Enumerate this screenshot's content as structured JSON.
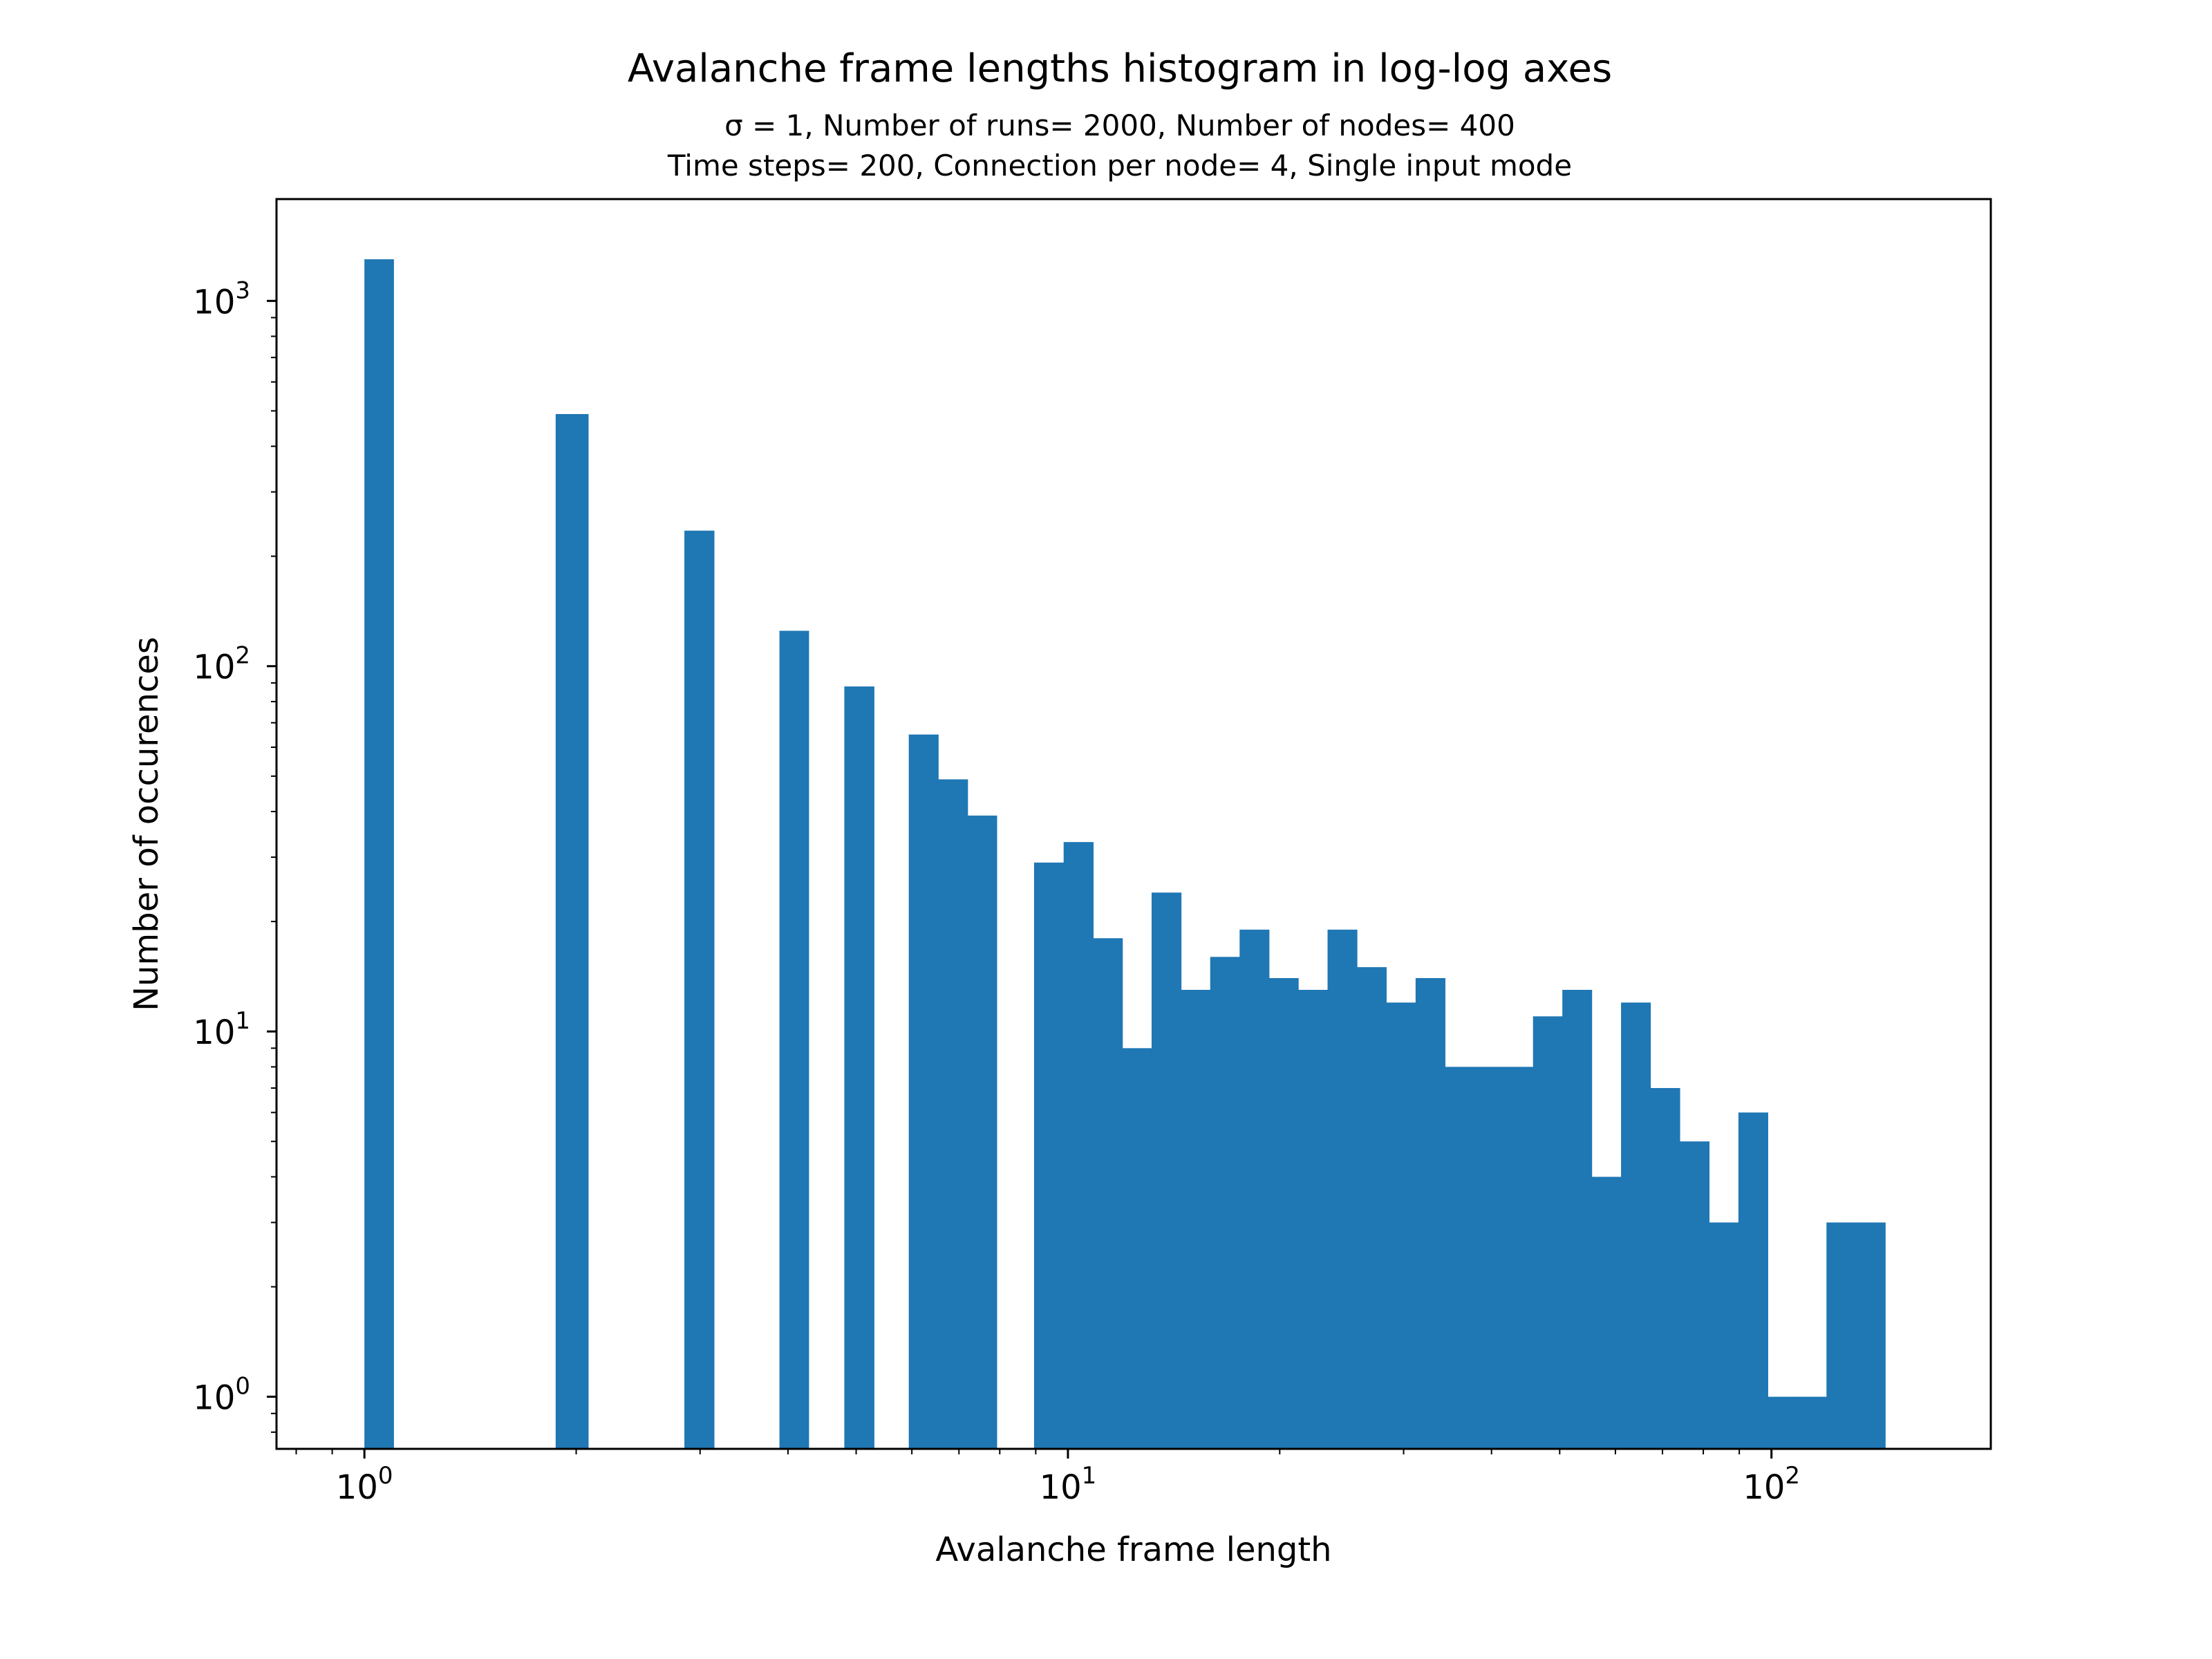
{
  "chart_data": {
    "type": "bar",
    "title": "Avalanche frame lengths histogram in log-log axes",
    "subtitle_lines": [
      "σ = 1, Number of runs= 2000, Number of nodes= 400",
      "Time steps= 200, Connection per node= 4, Single input mode"
    ],
    "xlabel": "Avalanche frame length",
    "ylabel": "Number of occurences",
    "x_scale": "log",
    "y_scale": "log",
    "xlim": [
      0.75,
      205
    ],
    "ylim": [
      0.72,
      1900
    ],
    "x_ticks": [
      {
        "base": "10",
        "exp": "0",
        "value": 1
      },
      {
        "base": "10",
        "exp": "1",
        "value": 10
      },
      {
        "base": "10",
        "exp": "2",
        "value": 100
      }
    ],
    "y_ticks": [
      {
        "base": "10",
        "exp": "0",
        "value": 1
      },
      {
        "base": "10",
        "exp": "1",
        "value": 10
      },
      {
        "base": "10",
        "exp": "2",
        "value": 100
      },
      {
        "base": "10",
        "exp": "3",
        "value": 1000
      }
    ],
    "bar_color": "#1f77b4",
    "bins": [
      {
        "x0": 1.0,
        "x1": 1.1,
        "count": 1300
      },
      {
        "x0": 1.87,
        "x1": 2.08,
        "count": 490
      },
      {
        "x0": 2.85,
        "x1": 3.14,
        "count": 235
      },
      {
        "x0": 3.89,
        "x1": 4.28,
        "count": 125
      },
      {
        "x0": 4.81,
        "x1": 5.3,
        "count": 88
      },
      {
        "x0": 5.94,
        "x1": 6.54,
        "count": 65
      },
      {
        "x0": 6.54,
        "x1": 7.2,
        "count": 49
      },
      {
        "x0": 7.2,
        "x1": 7.92,
        "count": 39
      },
      {
        "x0": 8.95,
        "x1": 9.86,
        "count": 29
      },
      {
        "x0": 9.86,
        "x1": 10.86,
        "count": 33
      },
      {
        "x0": 10.86,
        "x1": 11.95,
        "count": 18
      },
      {
        "x0": 11.95,
        "x1": 13.15,
        "count": 9
      },
      {
        "x0": 13.15,
        "x1": 14.48,
        "count": 24
      },
      {
        "x0": 14.48,
        "x1": 15.93,
        "count": 13
      },
      {
        "x0": 15.93,
        "x1": 17.54,
        "count": 16
      },
      {
        "x0": 17.54,
        "x1": 19.31,
        "count": 19
      },
      {
        "x0": 19.31,
        "x1": 21.25,
        "count": 14
      },
      {
        "x0": 21.25,
        "x1": 23.39,
        "count": 13
      },
      {
        "x0": 23.39,
        "x1": 25.75,
        "count": 19
      },
      {
        "x0": 25.75,
        "x1": 28.34,
        "count": 15
      },
      {
        "x0": 28.34,
        "x1": 31.2,
        "count": 12
      },
      {
        "x0": 31.2,
        "x1": 34.35,
        "count": 14
      },
      {
        "x0": 34.35,
        "x1": 37.81,
        "count": 8
      },
      {
        "x0": 37.81,
        "x1": 41.62,
        "count": 8
      },
      {
        "x0": 41.62,
        "x1": 45.82,
        "count": 8
      },
      {
        "x0": 45.82,
        "x1": 50.44,
        "count": 11
      },
      {
        "x0": 50.44,
        "x1": 55.52,
        "count": 13
      },
      {
        "x0": 55.52,
        "x1": 61.12,
        "count": 4
      },
      {
        "x0": 61.12,
        "x1": 67.28,
        "count": 12
      },
      {
        "x0": 67.28,
        "x1": 74.06,
        "count": 7
      },
      {
        "x0": 74.06,
        "x1": 81.53,
        "count": 5
      },
      {
        "x0": 81.53,
        "x1": 89.75,
        "count": 3
      },
      {
        "x0": 89.75,
        "x1": 98.8,
        "count": 6
      },
      {
        "x0": 98.8,
        "x1": 108.76,
        "count": 1
      },
      {
        "x0": 108.76,
        "x1": 119.73,
        "count": 1
      },
      {
        "x0": 119.73,
        "x1": 131.8,
        "count": 3
      },
      {
        "x0": 131.8,
        "x1": 145.09,
        "count": 3
      }
    ]
  }
}
